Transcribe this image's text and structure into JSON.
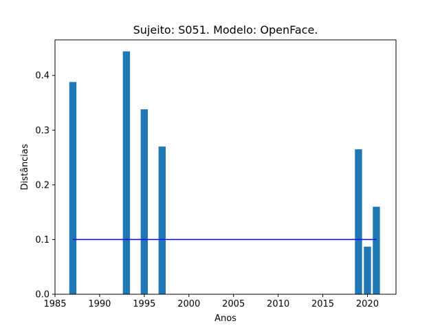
{
  "chart_data": {
    "type": "bar",
    "title": "Sujeito: S051. Modelo: OpenFace.",
    "xlabel": "Anos",
    "ylabel": "Distâncias",
    "xlim": [
      1985,
      2023.2
    ],
    "ylim": [
      0,
      0.465
    ],
    "x": [
      1987,
      1993,
      1995,
      1997,
      2019,
      2020,
      2021
    ],
    "values": [
      0.388,
      0.444,
      0.338,
      0.27,
      0.265,
      0.087,
      0.16
    ],
    "bar_width": 0.8,
    "bar_color": "#1f77b4",
    "threshold": {
      "value": 0.1,
      "x_range": [
        1987,
        2021
      ],
      "color": "#0000ff"
    },
    "xticks": [
      1985,
      1990,
      1995,
      2000,
      2005,
      2010,
      2015,
      2020
    ],
    "yticks": [
      0.0,
      0.1,
      0.2,
      0.3,
      0.4
    ],
    "xtick_labels": [
      "1985",
      "1990",
      "1995",
      "2000",
      "2005",
      "2010",
      "2015",
      "2020"
    ],
    "ytick_labels": [
      "0.0",
      "0.1",
      "0.2",
      "0.3",
      "0.4"
    ],
    "grid": false,
    "legend": false
  }
}
